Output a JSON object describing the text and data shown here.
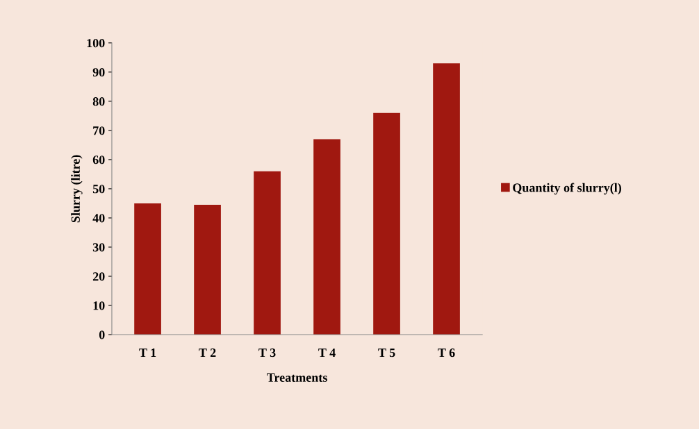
{
  "chart_data": {
    "type": "bar",
    "xlabel": "Treatments",
    "ylabel": "Slurry (litre)",
    "categories": [
      "T 1",
      "T 2",
      "T 3",
      "T 4",
      "T 5",
      "T 6"
    ],
    "series": [
      {
        "name": "Quantity of slurry(l)",
        "color": "#a01810",
        "values": [
          45,
          44.5,
          56,
          67,
          76,
          93
        ]
      }
    ],
    "ylim": [
      0,
      100
    ],
    "yticks": [
      0,
      10,
      20,
      30,
      40,
      50,
      60,
      70,
      80,
      90,
      100
    ],
    "grid": false,
    "legend": "right"
  }
}
